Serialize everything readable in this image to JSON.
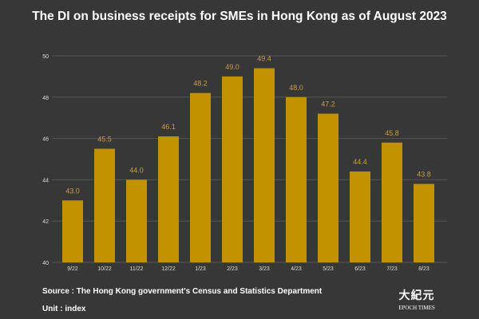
{
  "chart_data": {
    "type": "bar",
    "title": "The DI on business receipts for SMEs in Hong Kong as of August 2023",
    "categories": [
      "9/22",
      "10/22",
      "11/22",
      "12/22",
      "1/23",
      "2/23",
      "3/23",
      "4/23",
      "5/23",
      "6/23",
      "7/23",
      "8/23"
    ],
    "values": [
      43.0,
      45.5,
      44.0,
      46.1,
      48.2,
      49.0,
      49.4,
      48.0,
      47.2,
      44.4,
      45.8,
      43.8
    ],
    "data_labels": [
      "43.0",
      "45.5",
      "44.0",
      "46.1",
      "48.2",
      "49.0",
      "49.4",
      "48.0",
      "47.2",
      "44.4",
      "45.8",
      "43.8"
    ],
    "ylim": [
      40,
      50
    ],
    "yticks": [
      40,
      42,
      44,
      46,
      48,
      50
    ],
    "grid": true,
    "xlabel": "",
    "ylabel": "",
    "bar_color": "#C29200",
    "label_color": "#C8A030",
    "background": "#373737"
  },
  "footer": {
    "source": "Source : The Hong Kong government's Census and Statistics Department",
    "unit": "Unit : index"
  },
  "logo": {
    "chinese": "大紀元",
    "english": "EPOCH TIMES"
  }
}
